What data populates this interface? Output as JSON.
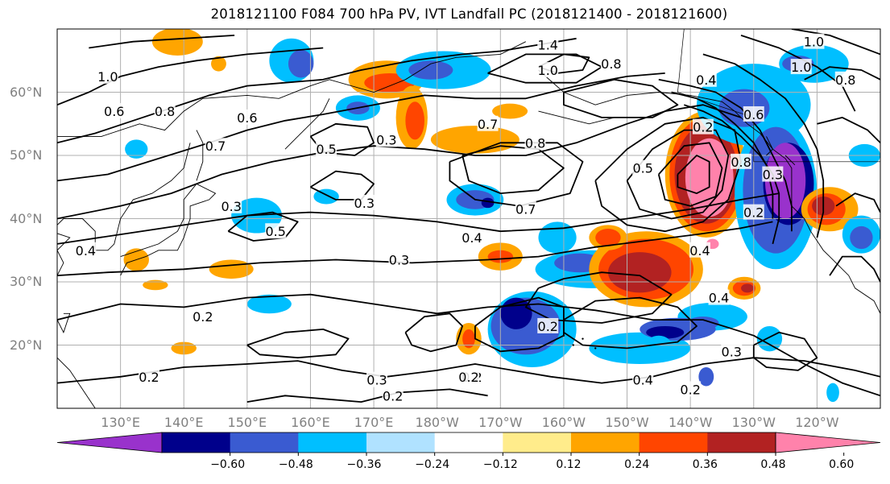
{
  "title": "2018121100 F084 700 hPa PV, IVT Landfall PC (2018121400 - 2018121600)",
  "map": {
    "projection": "PlateCarree",
    "lon_range": [
      120,
      250
    ],
    "lat_range": [
      10,
      70
    ],
    "lat_ticks": [
      "20°N",
      "30°N",
      "40°N",
      "50°N",
      "60°N"
    ],
    "lon_ticks": [
      "130°E",
      "140°E",
      "150°E",
      "160°E",
      "170°E",
      "180°W",
      "170°W",
      "160°W",
      "150°W",
      "140°W",
      "130°W",
      "120°W"
    ],
    "gridlines": true,
    "coastlines": true,
    "contour_color": "#000000"
  },
  "contour_labels": [
    {
      "text": "1.0",
      "lon": 128,
      "lat": 62.5
    },
    {
      "text": "0.8",
      "lon": 137,
      "lat": 57
    },
    {
      "text": "0.6",
      "lon": 129,
      "lat": 57
    },
    {
      "text": "0.6",
      "lon": 150,
      "lat": 56
    },
    {
      "text": "0.7",
      "lon": 145,
      "lat": 51.5
    },
    {
      "text": "0.5",
      "lon": 162.5,
      "lat": 51
    },
    {
      "text": "0.3",
      "lon": 172,
      "lat": 52.5
    },
    {
      "text": "0.3",
      "lon": 147.5,
      "lat": 42
    },
    {
      "text": "0.5",
      "lon": 154.5,
      "lat": 38
    },
    {
      "text": "0.3",
      "lon": 168.5,
      "lat": 42.5
    },
    {
      "text": "0.4",
      "lon": 124.5,
      "lat": 35
    },
    {
      "text": "0.3",
      "lon": 174,
      "lat": 33.5
    },
    {
      "text": "0.4",
      "lon": 185.5,
      "lat": 37
    },
    {
      "text": "0.2",
      "lon": 143,
      "lat": 24.5
    },
    {
      "text": "0.2",
      "lon": 134.5,
      "lat": 15
    },
    {
      "text": "0.3",
      "lon": 170.5,
      "lat": 14.5
    },
    {
      "text": "0.2",
      "lon": 173,
      "lat": 12
    },
    {
      "text": "0.2",
      "lon": 185.5,
      "lat": 15
    },
    {
      "text": "0.7",
      "lon": 188,
      "lat": 55
    },
    {
      "text": "0.8",
      "lon": 195.5,
      "lat": 52
    },
    {
      "text": "0.7",
      "lon": 194,
      "lat": 41.5
    },
    {
      "text": "1.0",
      "lon": 197.5,
      "lat": 63.5
    },
    {
      "text": "1.4",
      "lon": 197.5,
      "lat": 67.5
    },
    {
      "text": "0.8",
      "lon": 207.5,
      "lat": 64.5
    },
    {
      "text": "0.5",
      "lon": 212.5,
      "lat": 48
    },
    {
      "text": "0.4",
      "lon": 222.5,
      "lat": 62
    },
    {
      "text": "0.2",
      "lon": 222,
      "lat": 54.5
    },
    {
      "text": "0.8",
      "lon": 228,
      "lat": 49
    },
    {
      "text": "0.6",
      "lon": 230,
      "lat": 56.5
    },
    {
      "text": "0.3",
      "lon": 233,
      "lat": 47
    },
    {
      "text": "0.2",
      "lon": 230,
      "lat": 41
    },
    {
      "text": "0.4",
      "lon": 221.5,
      "lat": 35
    },
    {
      "text": "0.4",
      "lon": 224.5,
      "lat": 27.5
    },
    {
      "text": "0.3",
      "lon": 226.5,
      "lat": 19
    },
    {
      "text": "0.4",
      "lon": 212.5,
      "lat": 14.5
    },
    {
      "text": "0.2",
      "lon": 220,
      "lat": 13
    },
    {
      "text": "0.2",
      "lon": 197.5,
      "lat": 23
    },
    {
      "text": "0.2",
      "lon": 185,
      "lat": 15
    },
    {
      "text": "1.0",
      "lon": 239.5,
      "lat": 68
    },
    {
      "text": "1.0",
      "lon": 237.5,
      "lat": 64
    },
    {
      "text": "0.8",
      "lon": 244.5,
      "lat": 62
    }
  ],
  "colorbar": {
    "ticks": [
      "−0.60",
      "−0.48",
      "−0.36",
      "−0.24",
      "−0.12",
      "0.12",
      "0.24",
      "0.36",
      "0.48",
      "0.60"
    ],
    "bins": [
      {
        "color": "#9932cc"
      },
      {
        "color": "#00008b"
      },
      {
        "color": "#3a5bd1"
      },
      {
        "color": "#00bfff"
      },
      {
        "color": "#b0e2ff"
      },
      {
        "color": "#ffffff"
      },
      {
        "color": "#ffec8b"
      },
      {
        "color": "#ffa500"
      },
      {
        "color": "#ff4500"
      },
      {
        "color": "#b22222"
      },
      {
        "color": "#ff82ab"
      }
    ]
  },
  "shading": [
    {
      "color": "#ffa500",
      "lon": 139,
      "lat": 68,
      "rx": 4,
      "ry": 2.2
    },
    {
      "color": "#ffa500",
      "lon": 145.5,
      "lat": 64.5,
      "rx": 1.2,
      "ry": 1.2
    },
    {
      "color": "#00bfff",
      "lon": 157,
      "lat": 65,
      "rx": 3.5,
      "ry": 3.5
    },
    {
      "color": "#3a5bd1",
      "lon": 158.5,
      "lat": 64.5,
      "rx": 2,
      "ry": 2.2
    },
    {
      "color": "#ffa500",
      "lon": 172,
      "lat": 62,
      "rx": 6,
      "ry": 3
    },
    {
      "color": "#ff4500",
      "lon": 172.5,
      "lat": 61.5,
      "rx": 4,
      "ry": 1.5
    },
    {
      "color": "#ffa500",
      "lon": 176,
      "lat": 56,
      "rx": 2.5,
      "ry": 5
    },
    {
      "color": "#ff4500",
      "lon": 176.5,
      "lat": 55.5,
      "rx": 1.5,
      "ry": 3
    },
    {
      "color": "#00bfff",
      "lon": 167.5,
      "lat": 57.5,
      "rx": 3.5,
      "ry": 2
    },
    {
      "color": "#3a5bd1",
      "lon": 167.5,
      "lat": 57.5,
      "rx": 1.8,
      "ry": 1
    },
    {
      "color": "#00bfff",
      "lon": 181,
      "lat": 63.5,
      "rx": 7.5,
      "ry": 3
    },
    {
      "color": "#3a5bd1",
      "lon": 179,
      "lat": 63.5,
      "rx": 3.5,
      "ry": 1.5
    },
    {
      "color": "#ffa500",
      "lon": 191.5,
      "lat": 57,
      "rx": 2.8,
      "ry": 1.2
    },
    {
      "color": "#ffa500",
      "lon": 186,
      "lat": 52.5,
      "rx": 7,
      "ry": 2.2
    },
    {
      "color": "#00bfff",
      "lon": 186,
      "lat": 43,
      "rx": 4.5,
      "ry": 2.5
    },
    {
      "color": "#3a5bd1",
      "lon": 186,
      "lat": 43,
      "rx": 3,
      "ry": 1.5
    },
    {
      "color": "#00008b",
      "lon": 188,
      "lat": 42.5,
      "rx": 1,
      "ry": 0.8
    },
    {
      "color": "#00bfff",
      "lon": 162.5,
      "lat": 43.5,
      "rx": 2,
      "ry": 1.2
    },
    {
      "color": "#00bfff",
      "lon": 151.5,
      "lat": 40.5,
      "rx": 4,
      "ry": 2.8
    },
    {
      "color": "#00bfff",
      "lon": 132.5,
      "lat": 51,
      "rx": 1.8,
      "ry": 1.5
    },
    {
      "color": "#ffa500",
      "lon": 132.5,
      "lat": 33.5,
      "rx": 2,
      "ry": 1.8
    },
    {
      "color": "#ffa500",
      "lon": 147.5,
      "lat": 32,
      "rx": 3.5,
      "ry": 1.5
    },
    {
      "color": "#ffa500",
      "lon": 135.5,
      "lat": 29.5,
      "rx": 2,
      "ry": 0.8
    },
    {
      "color": "#00bfff",
      "lon": 153.5,
      "lat": 26.5,
      "rx": 3.5,
      "ry": 1.5
    },
    {
      "color": "#ffa500",
      "lon": 190,
      "lat": 34,
      "rx": 3.5,
      "ry": 2.2
    },
    {
      "color": "#ff4500",
      "lon": 190,
      "lat": 34,
      "rx": 2,
      "ry": 1
    },
    {
      "color": "#ffa500",
      "lon": 140,
      "lat": 19.5,
      "rx": 2,
      "ry": 1
    },
    {
      "color": "#ffa500",
      "lon": 185,
      "lat": 21,
      "rx": 2,
      "ry": 2.5
    },
    {
      "color": "#ff4500",
      "lon": 185,
      "lat": 21,
      "rx": 1,
      "ry": 1.5
    },
    {
      "color": "#00bfff",
      "lon": 199,
      "lat": 37,
      "rx": 3,
      "ry": 2.5
    },
    {
      "color": "#00bfff",
      "lon": 204.5,
      "lat": 32,
      "rx": 9,
      "ry": 3
    },
    {
      "color": "#3a5bd1",
      "lon": 202.5,
      "lat": 33,
      "rx": 4,
      "ry": 1.5
    },
    {
      "color": "#00bfff",
      "lon": 195,
      "lat": 22.5,
      "rx": 7,
      "ry": 6
    },
    {
      "color": "#3a5bd1",
      "lon": 194,
      "lat": 23,
      "rx": 5.5,
      "ry": 4.5
    },
    {
      "color": "#00008b",
      "lon": 192.5,
      "lat": 25,
      "rx": 2.5,
      "ry": 2.5
    },
    {
      "color": "#00bfff",
      "lon": 212,
      "lat": 19.5,
      "rx": 8,
      "ry": 2.5
    },
    {
      "color": "#00bfff",
      "lon": 223.5,
      "lat": 24.5,
      "rx": 5.5,
      "ry": 2.2
    },
    {
      "color": "#3a5bd1",
      "lon": 218,
      "lat": 22.5,
      "rx": 6,
      "ry": 1.8
    },
    {
      "color": "#00008b",
      "lon": 216,
      "lat": 22,
      "rx": 3,
      "ry": 1
    },
    {
      "color": "#ffa500",
      "lon": 213,
      "lat": 32,
      "rx": 9,
      "ry": 6
    },
    {
      "color": "#ff4500",
      "lon": 213,
      "lat": 32,
      "rx": 7.5,
      "ry": 4.8
    },
    {
      "color": "#b22222",
      "lon": 212,
      "lat": 31.5,
      "rx": 5,
      "ry": 3.2
    },
    {
      "color": "#ffa500",
      "lon": 207,
      "lat": 37,
      "rx": 3,
      "ry": 2
    },
    {
      "color": "#ff4500",
      "lon": 207,
      "lat": 37,
      "rx": 2,
      "ry": 1.4
    },
    {
      "color": "#00bfff",
      "lon": 215,
      "lat": 20,
      "rx": 2,
      "ry": 1.5
    },
    {
      "color": "#3a5bd1",
      "lon": 222,
      "lat": 23.5,
      "rx": 2.5,
      "ry": 1
    },
    {
      "color": "#00bfff",
      "lon": 232.5,
      "lat": 21,
      "rx": 2,
      "ry": 2
    },
    {
      "color": "#3a5bd1",
      "lon": 222.5,
      "lat": 15,
      "rx": 1.2,
      "ry": 1.5
    },
    {
      "color": "#00bfff",
      "lon": 242.5,
      "lat": 12.5,
      "rx": 1,
      "ry": 1.5
    },
    {
      "color": "#ffa500",
      "lon": 228.5,
      "lat": 29,
      "rx": 2.6,
      "ry": 1.8
    },
    {
      "color": "#ff4500",
      "lon": 228.5,
      "lat": 29,
      "rx": 1.8,
      "ry": 1.2
    },
    {
      "color": "#b22222",
      "lon": 229,
      "lat": 29,
      "rx": 1,
      "ry": 0.7
    },
    {
      "color": "#ffa500",
      "lon": 222.5,
      "lat": 47,
      "rx": 6.5,
      "ry": 10
    },
    {
      "color": "#ff4500",
      "lon": 222.5,
      "lat": 47,
      "rx": 5.8,
      "ry": 9
    },
    {
      "color": "#b22222",
      "lon": 222.5,
      "lat": 47,
      "rx": 5,
      "ry": 7.8
    },
    {
      "color": "#ff82ab",
      "lon": 223,
      "lat": 46.5,
      "rx": 3.8,
      "ry": 6.2
    },
    {
      "color": "#00bfff",
      "lon": 230,
      "lat": 58,
      "rx": 9,
      "ry": 6.5
    },
    {
      "color": "#3a5bd1",
      "lon": 228.5,
      "lat": 57.5,
      "rx": 4,
      "ry": 3
    },
    {
      "color": "#00bfff",
      "lon": 233.5,
      "lat": 44,
      "rx": 6.5,
      "ry": 12
    },
    {
      "color": "#3a5bd1",
      "lon": 233.5,
      "lat": 44.5,
      "rx": 5.2,
      "ry": 10
    },
    {
      "color": "#00008b",
      "lon": 235.5,
      "lat": 45.5,
      "rx": 4,
      "ry": 6.5
    },
    {
      "color": "#9932cc",
      "lon": 235,
      "lat": 46,
      "rx": 3.2,
      "ry": 6
    },
    {
      "color": "#ff82ab",
      "lon": 223.5,
      "lat": 36,
      "rx": 1,
      "ry": 0.8
    },
    {
      "color": "#00bfff",
      "lon": 239.5,
      "lat": 64.5,
      "rx": 5.5,
      "ry": 3
    },
    {
      "color": "#3a5bd1",
      "lon": 237,
      "lat": 64.5,
      "rx": 2.5,
      "ry": 1.3
    },
    {
      "color": "#00bfff",
      "lon": 247.5,
      "lat": 50,
      "rx": 2.5,
      "ry": 1.8
    },
    {
      "color": "#ffa500",
      "lon": 242,
      "lat": 41.5,
      "rx": 4.5,
      "ry": 3.5
    },
    {
      "color": "#ff4500",
      "lon": 241.5,
      "lat": 41.5,
      "rx": 3,
      "ry": 2.5
    },
    {
      "color": "#b22222",
      "lon": 241,
      "lat": 42,
      "rx": 1.8,
      "ry": 1.5
    },
    {
      "color": "#00bfff",
      "lon": 247,
      "lat": 37.5,
      "rx": 3,
      "ry": 3
    },
    {
      "color": "#3a5bd1",
      "lon": 247,
      "lat": 37,
      "rx": 1.8,
      "ry": 1.8
    }
  ]
}
